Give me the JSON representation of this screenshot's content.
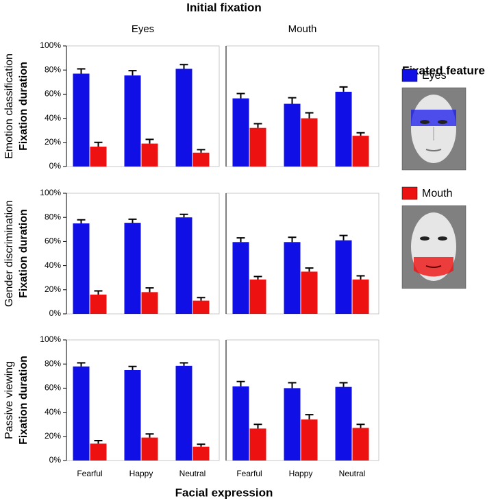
{
  "figure": {
    "title": "Initial fixation",
    "xlabel": "Facial expression",
    "legend_title": "Fixated feature"
  },
  "chart_data": [
    {
      "type": "bar",
      "title": "Eyes",
      "row_label": "Emotion classification",
      "ylabel": "Fixation duration",
      "ylim": [
        0,
        100
      ],
      "yticks": [
        {
          "value": 0,
          "label": "0%"
        },
        {
          "value": 20,
          "label": "20%"
        },
        {
          "value": 40,
          "label": "40%"
        },
        {
          "value": 60,
          "label": "60%"
        },
        {
          "value": 80,
          "label": "80%"
        },
        {
          "value": 100,
          "label": "100%"
        }
      ],
      "series": [
        {
          "name": "Eyes",
          "color": "#0f0fe6",
          "values": [
            77,
            75.5,
            81
          ],
          "errors": [
            4,
            4,
            3.5
          ]
        },
        {
          "name": "Mouth",
          "color": "#ee1111",
          "values": [
            16.5,
            19,
            11.5
          ],
          "errors": [
            3.5,
            3.5,
            2.5
          ]
        }
      ]
    },
    {
      "type": "bar",
      "title": "Mouth",
      "ylim": [
        0,
        100
      ],
      "series": [
        {
          "color": "#0f0fe6",
          "values": [
            56.5,
            52,
            62
          ],
          "errors": [
            4,
            5,
            4
          ]
        },
        {
          "color": "#ee1111",
          "values": [
            32,
            40,
            25.5
          ],
          "errors": [
            3.5,
            4.5,
            2.5
          ]
        }
      ]
    },
    {
      "type": "bar",
      "row_label": "Gender discrimination",
      "ylabel": "Fixation duration",
      "ylim": [
        0,
        100
      ],
      "yticks": [
        {
          "value": 0,
          "label": "0%"
        },
        {
          "value": 20,
          "label": "20%"
        },
        {
          "value": 40,
          "label": "40%"
        },
        {
          "value": 60,
          "label": "60%"
        },
        {
          "value": 80,
          "label": "80%"
        },
        {
          "value": 100,
          "label": "100%"
        }
      ],
      "series": [
        {
          "color": "#0f0fe6",
          "values": [
            75,
            75.5,
            80
          ],
          "errors": [
            3,
            3,
            2.5
          ]
        },
        {
          "color": "#ee1111",
          "values": [
            16,
            18,
            11
          ],
          "errors": [
            3,
            3.5,
            2.5
          ]
        }
      ]
    },
    {
      "type": "bar",
      "ylim": [
        0,
        100
      ],
      "series": [
        {
          "color": "#0f0fe6",
          "values": [
            59.5,
            59.5,
            61
          ],
          "errors": [
            3.5,
            4,
            4
          ]
        },
        {
          "color": "#ee1111",
          "values": [
            28.5,
            35,
            28.5
          ],
          "errors": [
            2.5,
            3,
            3
          ]
        }
      ]
    },
    {
      "type": "bar",
      "row_label": "Passive viewing",
      "ylabel": "Fixation duration",
      "ylim": [
        0,
        100
      ],
      "categories": [
        "Fearful",
        "Happy",
        "Neutral"
      ],
      "yticks": [
        {
          "value": 0,
          "label": "0%"
        },
        {
          "value": 20,
          "label": "20%"
        },
        {
          "value": 40,
          "label": "40%"
        },
        {
          "value": 60,
          "label": "60%"
        },
        {
          "value": 80,
          "label": "80%"
        },
        {
          "value": 100,
          "label": "100%"
        }
      ],
      "series": [
        {
          "color": "#0f0fe6",
          "values": [
            78,
            75,
            78.5
          ],
          "errors": [
            3,
            3,
            2.5
          ]
        },
        {
          "color": "#ee1111",
          "values": [
            14,
            19,
            11.5
          ],
          "errors": [
            2.5,
            3,
            2
          ]
        }
      ]
    },
    {
      "type": "bar",
      "ylim": [
        0,
        100
      ],
      "categories": [
        "Fearful",
        "Happy",
        "Neutral"
      ],
      "series": [
        {
          "color": "#0f0fe6",
          "values": [
            61.5,
            60,
            61
          ],
          "errors": [
            4,
            4.5,
            3.5
          ]
        },
        {
          "color": "#ee1111",
          "values": [
            26.5,
            34,
            27
          ],
          "errors": [
            3.5,
            4,
            3
          ]
        }
      ]
    }
  ]
}
